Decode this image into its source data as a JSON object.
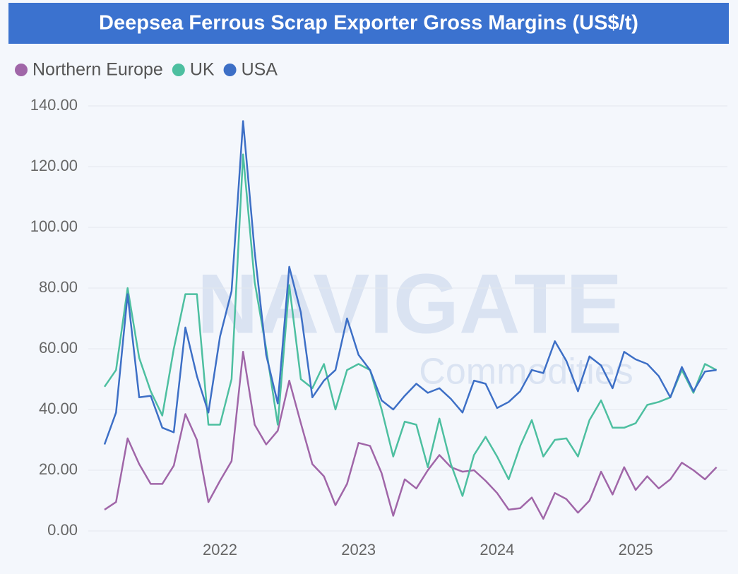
{
  "chart_data": {
    "type": "line",
    "title": "Deepsea Ferrous Scrap Exporter Gross Margins (US$/t)",
    "watermark": [
      "NAVIGATE",
      "Commodities"
    ],
    "categories": [
      null,
      null,
      null,
      null,
      null,
      null,
      null,
      null,
      null,
      null,
      "2022",
      null,
      null,
      null,
      null,
      null,
      null,
      null,
      null,
      null,
      null,
      null,
      "2023",
      null,
      null,
      null,
      null,
      null,
      null,
      null,
      null,
      null,
      null,
      null,
      "2024",
      null,
      null,
      null,
      null,
      null,
      null,
      null,
      null,
      null,
      null,
      null,
      "2025",
      null,
      null,
      null,
      null,
      null,
      null,
      null
    ],
    "series": [
      {
        "name": "Northern Europe",
        "color": "#a066a8",
        "values": [
          7,
          9.5,
          30.5,
          22,
          15.5,
          15.5,
          21.5,
          38.5,
          30,
          9.5,
          16.5,
          23,
          59,
          35,
          28.5,
          33,
          49.5,
          35.5,
          22,
          18,
          8.5,
          15.5,
          29,
          28,
          19,
          5,
          17,
          14,
          20,
          25,
          21,
          19.5,
          20,
          16.5,
          12.5,
          7,
          7.5,
          11,
          4,
          12.5,
          10.5,
          6,
          10,
          19.5,
          12,
          21,
          13.5,
          18,
          14,
          17,
          22.5,
          20,
          17,
          21
        ]
      },
      {
        "name": "UK",
        "color": "#4dbfa0",
        "values": [
          47.5,
          53,
          80,
          57,
          46,
          38,
          60,
          78,
          78,
          35,
          35,
          50,
          124,
          82,
          60,
          35,
          81,
          50,
          47,
          55,
          40,
          53,
          55,
          53,
          40,
          24.5,
          36,
          35,
          21,
          37,
          22,
          11.5,
          25,
          31,
          24.5,
          17,
          28,
          36.5,
          24.5,
          30,
          30.5,
          24.5,
          36.5,
          43,
          34,
          34,
          35.5,
          41.5,
          42.5,
          44,
          53,
          45.5,
          55,
          53
        ]
      },
      {
        "name": "USA",
        "color": "#3d6fc6",
        "values": [
          28.5,
          39,
          78,
          44,
          44.5,
          34,
          32.5,
          67,
          51,
          39,
          64,
          79,
          135,
          92,
          58,
          42,
          87,
          72,
          44,
          49.5,
          53,
          70,
          58,
          53,
          43,
          40,
          44.5,
          48.5,
          45.5,
          47,
          43.5,
          39,
          49.5,
          48.5,
          40.5,
          42.5,
          46,
          53,
          52,
          62.5,
          56,
          46,
          57.5,
          54.5,
          47,
          59,
          56.5,
          55,
          51,
          44,
          54,
          46,
          52.5,
          53
        ]
      }
    ],
    "ylim": [
      0,
      140
    ],
    "yticks": [
      {
        "value": 0,
        "label": "0.00"
      },
      {
        "value": 20,
        "label": "20.00"
      },
      {
        "value": 40,
        "label": "40.00"
      },
      {
        "value": 60,
        "label": "60.00"
      },
      {
        "value": 80,
        "label": "80.00"
      },
      {
        "value": 100,
        "label": "100.00"
      },
      {
        "value": 120,
        "label": "120.00"
      },
      {
        "value": 140,
        "label": "140.00"
      }
    ],
    "grid": true
  }
}
